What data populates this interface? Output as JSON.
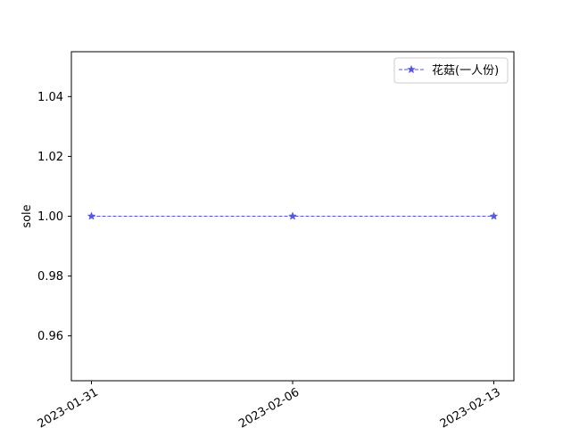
{
  "chart_data": {
    "type": "line",
    "title": "",
    "xlabel": "",
    "ylabel": "sole",
    "categories": [
      "2023-01-31",
      "2023-02-06",
      "2023-02-13"
    ],
    "ylim": [
      0.945,
      1.055
    ],
    "yticks": [
      0.96,
      0.98,
      1.0,
      1.02,
      1.04
    ],
    "ytick_labels": [
      "0.96",
      "0.98",
      "1.00",
      "1.02",
      "1.04"
    ],
    "grid": false,
    "legend_position": "top-right",
    "series": [
      {
        "name": "花菇(一人份)",
        "values": [
          1.0,
          1.0,
          1.0
        ],
        "color": "#5555e8",
        "line_style": "dashed",
        "marker": "star"
      }
    ]
  }
}
